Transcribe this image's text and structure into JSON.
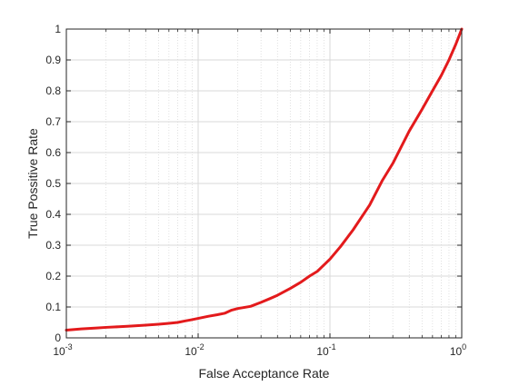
{
  "chart_data": {
    "type": "line",
    "title": "",
    "xlabel": "False Acceptance Rate",
    "ylabel": "True Possitive Rate",
    "xscale": "log",
    "xlim": [
      0.001,
      1
    ],
    "ylim": [
      0,
      1
    ],
    "grid": true,
    "minor_grid_x": true,
    "x_tick_labels": [
      {
        "base": "10",
        "exp": "-3",
        "value": 0.001
      },
      {
        "base": "10",
        "exp": "-2",
        "value": 0.01
      },
      {
        "base": "10",
        "exp": "-1",
        "value": 0.1
      },
      {
        "base": "10",
        "exp": "0",
        "value": 1
      }
    ],
    "y_ticks": [
      0,
      0.1,
      0.2,
      0.3,
      0.4,
      0.5,
      0.6,
      0.7,
      0.8,
      0.9,
      1
    ],
    "y_tick_labels": [
      "0",
      "0.1",
      "0.2",
      "0.3",
      "0.4",
      "0.5",
      "0.6",
      "0.7",
      "0.8",
      "0.9",
      "1"
    ],
    "series": [
      {
        "color": "#e31a1c",
        "x": [
          0.001,
          0.0013,
          0.0017,
          0.002,
          0.0025,
          0.003,
          0.004,
          0.005,
          0.006,
          0.007,
          0.008,
          0.009,
          0.01,
          0.012,
          0.014,
          0.016,
          0.018,
          0.02,
          0.025,
          0.03,
          0.035,
          0.04,
          0.05,
          0.06,
          0.07,
          0.08,
          0.1,
          0.12,
          0.15,
          0.2,
          0.25,
          0.3,
          0.4,
          0.5,
          0.6,
          0.7,
          0.8,
          0.9,
          1.0
        ],
        "y": [
          0.025,
          0.029,
          0.032,
          0.034,
          0.036,
          0.038,
          0.041,
          0.044,
          0.047,
          0.05,
          0.055,
          0.059,
          0.063,
          0.07,
          0.075,
          0.08,
          0.09,
          0.095,
          0.102,
          0.115,
          0.127,
          0.138,
          0.16,
          0.18,
          0.2,
          0.215,
          0.255,
          0.295,
          0.35,
          0.43,
          0.51,
          0.565,
          0.67,
          0.74,
          0.8,
          0.85,
          0.9,
          0.95,
          1.0
        ]
      }
    ]
  }
}
